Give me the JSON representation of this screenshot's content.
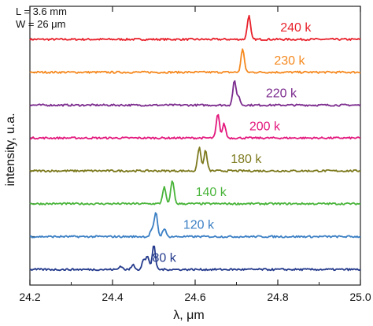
{
  "chart_data": {
    "type": "line",
    "xlabel": "λ, μm",
    "ylabel": "intensity, u.a.",
    "xlim": [
      24.2,
      25.0
    ],
    "x_ticks": [
      "24.2",
      "24.4",
      "24.6",
      "24.8",
      "25.0"
    ],
    "annotation": {
      "L": "L = 3.6 mm",
      "W": "W = 26 μm"
    },
    "series": [
      {
        "name": "240 k",
        "color": "#e8212b",
        "peaks": [
          24.73
        ],
        "peak_heights": [
          1.0
        ]
      },
      {
        "name": "230 k",
        "color": "#f5891f",
        "peaks": [
          24.715
        ],
        "peak_heights": [
          1.0
        ]
      },
      {
        "name": "220 k",
        "color": "#7b2a8d",
        "peaks": [
          24.695,
          24.705
        ],
        "peak_heights": [
          1.0,
          0.35
        ]
      },
      {
        "name": "200 k",
        "color": "#e3187d",
        "peaks": [
          24.655,
          24.67
        ],
        "peak_heights": [
          1.0,
          0.6
        ]
      },
      {
        "name": "180 k",
        "color": "#7d7a1f",
        "peaks": [
          24.61,
          24.625
        ],
        "peak_heights": [
          1.0,
          0.85
        ]
      },
      {
        "name": "140 k",
        "color": "#49b43a",
        "peaks": [
          24.525,
          24.545
        ],
        "peak_heights": [
          0.7,
          1.0
        ]
      },
      {
        "name": "120 k",
        "color": "#3b7fc4",
        "peaks": [
          24.495,
          24.505,
          24.525
        ],
        "peak_heights": [
          0.3,
          1.0,
          0.35
        ]
      },
      {
        "name": "80 k",
        "color": "#243a8c",
        "peaks": [
          24.42,
          24.45,
          24.475,
          24.485,
          24.5
        ],
        "peak_heights": [
          0.15,
          0.2,
          0.4,
          0.55,
          1.0
        ]
      }
    ]
  }
}
